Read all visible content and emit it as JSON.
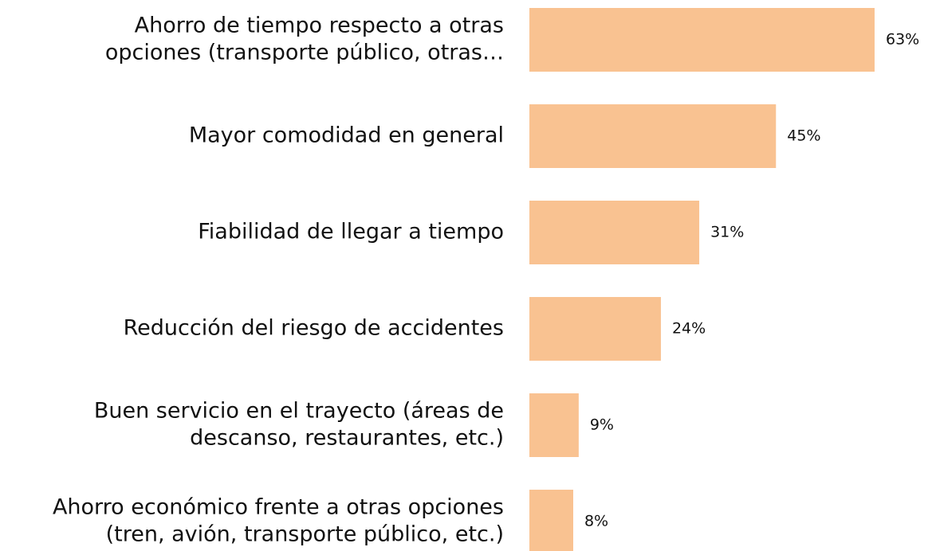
{
  "chart_data": {
    "type": "bar",
    "orientation": "horizontal",
    "categories": [
      [
        "Ahorro de tiempo respecto a otras",
        "opciones (transporte público, otras…"
      ],
      [
        "Mayor comodidad en general"
      ],
      [
        "Fiabilidad de llegar a tiempo"
      ],
      [
        "Reducción del riesgo de accidentes"
      ],
      [
        "Buen servicio en el trayecto (áreas de",
        "descanso, restaurantes, etc.)"
      ],
      [
        "Ahorro económico frente a otras opciones",
        "(tren, avión, transporte público, etc.)"
      ]
    ],
    "values": [
      63,
      45,
      31,
      24,
      9,
      8
    ],
    "value_labels": [
      "63%",
      "45%",
      "31%",
      "24%",
      "9%",
      "8%"
    ],
    "color": "#f9c291"
  }
}
